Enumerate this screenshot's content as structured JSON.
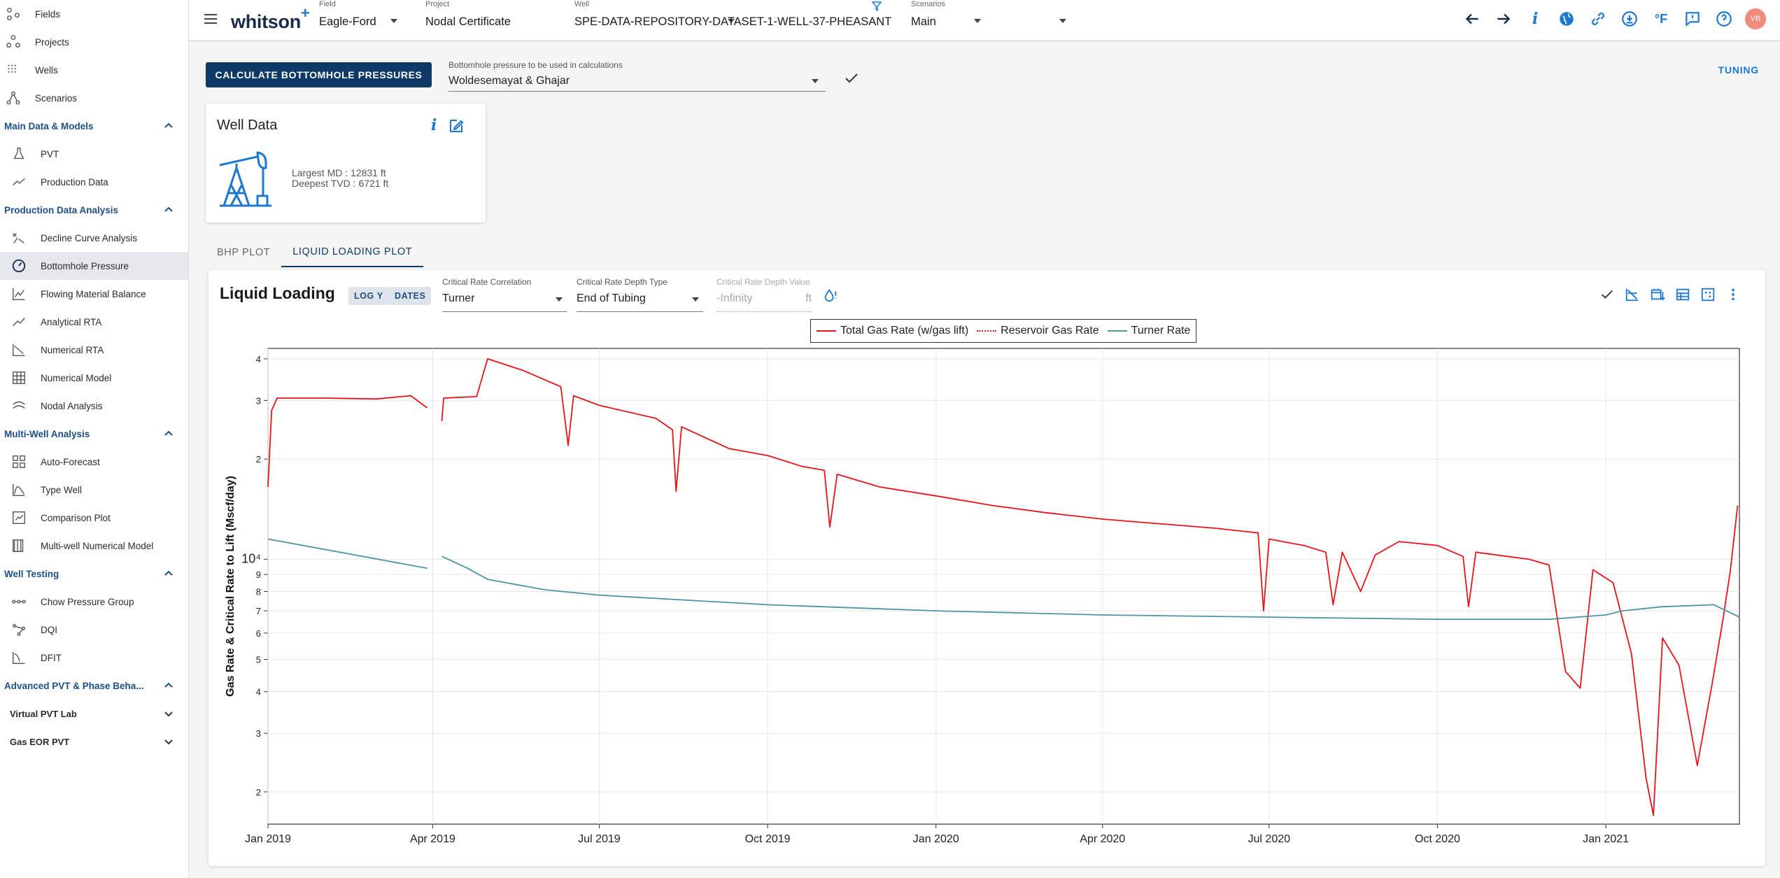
{
  "sidebar": {
    "top_items": [
      {
        "label": "Fields",
        "icon": "fields-icon"
      },
      {
        "label": "Projects",
        "icon": "projects-icon"
      },
      {
        "label": "Wells",
        "icon": "wells-icon"
      },
      {
        "label": "Scenarios",
        "icon": "scenarios-icon"
      }
    ],
    "sections": [
      {
        "title": "Main Data & Models",
        "items": [
          {
            "label": "PVT",
            "icon": "flask-icon"
          },
          {
            "label": "Production Data",
            "icon": "line-chart-icon"
          }
        ]
      },
      {
        "title": "Production Data Analysis",
        "items": [
          {
            "label": "Decline Curve Analysis",
            "icon": "decline-icon"
          },
          {
            "label": "Bottomhole Pressure",
            "icon": "gauge-icon"
          },
          {
            "label": "Flowing Material Balance",
            "icon": "fmb-icon"
          },
          {
            "label": "Analytical RTA",
            "icon": "analytical-rta-icon"
          },
          {
            "label": "Numerical RTA",
            "icon": "numerical-rta-icon"
          },
          {
            "label": "Numerical Model",
            "icon": "grid-model-icon"
          },
          {
            "label": "Nodal Analysis",
            "icon": "nodal-icon"
          }
        ]
      },
      {
        "title": "Multi-Well Analysis",
        "items": [
          {
            "label": "Auto-Forecast",
            "icon": "auto-forecast-icon"
          },
          {
            "label": "Type Well",
            "icon": "type-well-icon"
          },
          {
            "label": "Comparison Plot",
            "icon": "comparison-icon"
          },
          {
            "label": "Multi-well Numerical Model",
            "icon": "multiwell-model-icon"
          }
        ]
      },
      {
        "title": "Well Testing",
        "items": [
          {
            "label": "Chow Pressure Group",
            "icon": "chow-icon"
          },
          {
            "label": "DQI",
            "icon": "dqi-icon"
          },
          {
            "label": "DFIT",
            "icon": "dfit-icon"
          }
        ]
      },
      {
        "title": "Advanced PVT & Phase Beha...",
        "items": []
      }
    ],
    "collapsed": [
      "Virtual PVT Lab",
      "Gas EOR PVT"
    ],
    "active": "Bottomhole Pressure"
  },
  "header": {
    "logo": "whitson",
    "logo_plus": "+",
    "field": {
      "caption": "Field",
      "value": "Eagle-Ford"
    },
    "project": {
      "caption": "Project",
      "value": "Nodal Certificate"
    },
    "well": {
      "caption": "Well",
      "value": "SPE-DATA-REPOSITORY-DATASET-1-WELL-37-PHEASANT"
    },
    "scenarios": {
      "caption": "Scenarios",
      "value": "Main"
    },
    "icons": [
      "arrow-left-icon",
      "arrow-right-icon",
      "info-icon",
      "globe-icon",
      "link-icon",
      "download-icon",
      "fahrenheit-icon",
      "feedback-icon",
      "help-icon"
    ],
    "unit_label": "°F",
    "avatar": "VB"
  },
  "toolbar": {
    "calc_button": "CALCULATE BOTTOMHOLE PRESSURES",
    "bhp_caption": "Bottomhole pressure to be used in calculations",
    "bhp_value": "Woldesemayat & Ghajar",
    "tuning": "TUNING"
  },
  "well_data": {
    "title": "Well Data",
    "largest_md": "Largest MD :  12831 ft",
    "deepest_tvd": "Deepest TVD :  6721 ft"
  },
  "tabs": [
    {
      "label": "BHP PLOT",
      "active": false
    },
    {
      "label": "LIQUID LOADING PLOT",
      "active": true
    }
  ],
  "liquid_loading": {
    "title": "Liquid Loading",
    "log_y": "LOG Y",
    "dates": "DATES",
    "correlation": {
      "caption": "Critical Rate Correlation",
      "value": "Turner"
    },
    "depth_type": {
      "caption": "Critical Rate Depth Type",
      "value": "End of Tubing"
    },
    "depth_value": {
      "caption": "Critical Rate Depth Value",
      "value": "-Infinity",
      "unit": "ft"
    }
  },
  "chart_data": {
    "type": "line",
    "ylabel": "Gas Rate & Critical Rate to Lift (Mscf/day)",
    "yscale": "log",
    "ylim": [
      1600,
      43000
    ],
    "y_tick_labels": [
      {
        "v": 2000,
        "t": "2"
      },
      {
        "v": 3000,
        "t": "3"
      },
      {
        "v": 4000,
        "t": "4"
      },
      {
        "v": 5000,
        "t": "5"
      },
      {
        "v": 6000,
        "t": "6"
      },
      {
        "v": 7000,
        "t": "7"
      },
      {
        "v": 8000,
        "t": "8"
      },
      {
        "v": 9000,
        "t": "9"
      },
      {
        "v": 10000,
        "t": "10⁴"
      },
      {
        "v": 20000,
        "t": "2"
      },
      {
        "v": 30000,
        "t": "3"
      },
      {
        "v": 40000,
        "t": "4"
      }
    ],
    "x_tick_labels": [
      "Jan 2019",
      "Apr 2019",
      "Jul 2019",
      "Oct 2019",
      "Jan 2020",
      "Apr 2020",
      "Jul 2020",
      "Oct 2020",
      "Jan 2021"
    ],
    "xlim": [
      "2019-01-01",
      "2021-03-15"
    ],
    "legend": "top-center",
    "series": [
      {
        "name": "Total Gas Rate (w/gas lift)",
        "color": "#e8141b",
        "dash": "solid",
        "points": [
          [
            "2019-01-01",
            16500
          ],
          [
            "2019-01-03",
            28000
          ],
          [
            "2019-01-06",
            30500
          ],
          [
            "2019-02-01",
            30500
          ],
          [
            "2019-03-01",
            30300
          ],
          [
            "2019-03-20",
            31000
          ],
          [
            "2019-03-29",
            28500
          ],
          null,
          [
            "2019-04-06",
            26000
          ],
          [
            "2019-04-07",
            30500
          ],
          [
            "2019-04-25",
            30800
          ],
          [
            "2019-05-01",
            40000
          ],
          [
            "2019-05-20",
            37000
          ],
          [
            "2019-06-10",
            33000
          ],
          [
            "2019-06-14",
            22000
          ],
          [
            "2019-06-17",
            31000
          ],
          [
            "2019-07-01",
            29000
          ],
          [
            "2019-08-01",
            26500
          ],
          [
            "2019-08-10",
            24500
          ],
          [
            "2019-08-12",
            16000
          ],
          [
            "2019-08-15",
            25000
          ],
          [
            "2019-09-10",
            21500
          ],
          [
            "2019-10-01",
            20500
          ],
          [
            "2019-10-20",
            19000
          ],
          [
            "2019-11-01",
            18500
          ],
          [
            "2019-11-04",
            12500
          ],
          [
            "2019-11-08",
            18000
          ],
          [
            "2019-12-01",
            16500
          ],
          [
            "2020-01-01",
            15500
          ],
          [
            "2020-02-01",
            14500
          ],
          [
            "2020-03-01",
            13800
          ],
          [
            "2020-04-01",
            13200
          ],
          [
            "2020-05-01",
            12800
          ],
          [
            "2020-06-01",
            12400
          ],
          [
            "2020-06-25",
            12000
          ],
          [
            "2020-06-28",
            7000
          ],
          [
            "2020-07-01",
            11500
          ],
          [
            "2020-07-20",
            11000
          ],
          [
            "2020-08-01",
            10500
          ],
          [
            "2020-08-05",
            7300
          ],
          [
            "2020-08-10",
            10500
          ],
          [
            "2020-08-20",
            8000
          ],
          [
            "2020-08-28",
            10300
          ],
          [
            "2020-09-10",
            11300
          ],
          [
            "2020-10-01",
            11000
          ],
          [
            "2020-10-15",
            10200
          ],
          [
            "2020-10-18",
            7200
          ],
          [
            "2020-10-22",
            10500
          ],
          [
            "2020-11-20",
            10000
          ],
          [
            "2020-12-01",
            9600
          ],
          [
            "2020-12-10",
            4600
          ],
          [
            "2020-12-18",
            4100
          ],
          [
            "2020-12-25",
            9300
          ],
          [
            "2021-01-05",
            8500
          ],
          [
            "2021-01-15",
            5200
          ],
          [
            "2021-01-23",
            2200
          ],
          [
            "2021-01-27",
            1700
          ],
          [
            "2021-02-01",
            5800
          ],
          [
            "2021-02-10",
            4800
          ],
          [
            "2021-02-20",
            2400
          ],
          [
            "2021-02-28",
            4200
          ],
          [
            "2021-03-06",
            6600
          ],
          [
            "2021-03-10",
            9200
          ],
          [
            "2021-03-14",
            14500
          ]
        ]
      },
      {
        "name": "Reservoir Gas Rate",
        "color": "#e8141b",
        "dash": "dotted",
        "points": []
      },
      {
        "name": "Turner Rate",
        "color": "#4e95a0",
        "dash": "solid",
        "points": [
          [
            "2019-01-01",
            11500
          ],
          [
            "2019-03-29",
            9400
          ],
          null,
          [
            "2019-04-06",
            10200
          ],
          [
            "2019-04-20",
            9400
          ],
          [
            "2019-05-01",
            8700
          ],
          [
            "2019-06-01",
            8100
          ],
          [
            "2019-07-01",
            7800
          ],
          [
            "2019-10-01",
            7300
          ],
          [
            "2020-01-01",
            7000
          ],
          [
            "2020-04-01",
            6800
          ],
          [
            "2020-07-01",
            6700
          ],
          [
            "2020-10-01",
            6600
          ],
          [
            "2020-12-01",
            6600
          ],
          [
            "2021-01-01",
            6800
          ],
          [
            "2021-01-10",
            7000
          ],
          [
            "2021-02-01",
            7200
          ],
          [
            "2021-03-01",
            7300
          ],
          [
            "2021-03-15",
            6700
          ]
        ]
      }
    ]
  }
}
